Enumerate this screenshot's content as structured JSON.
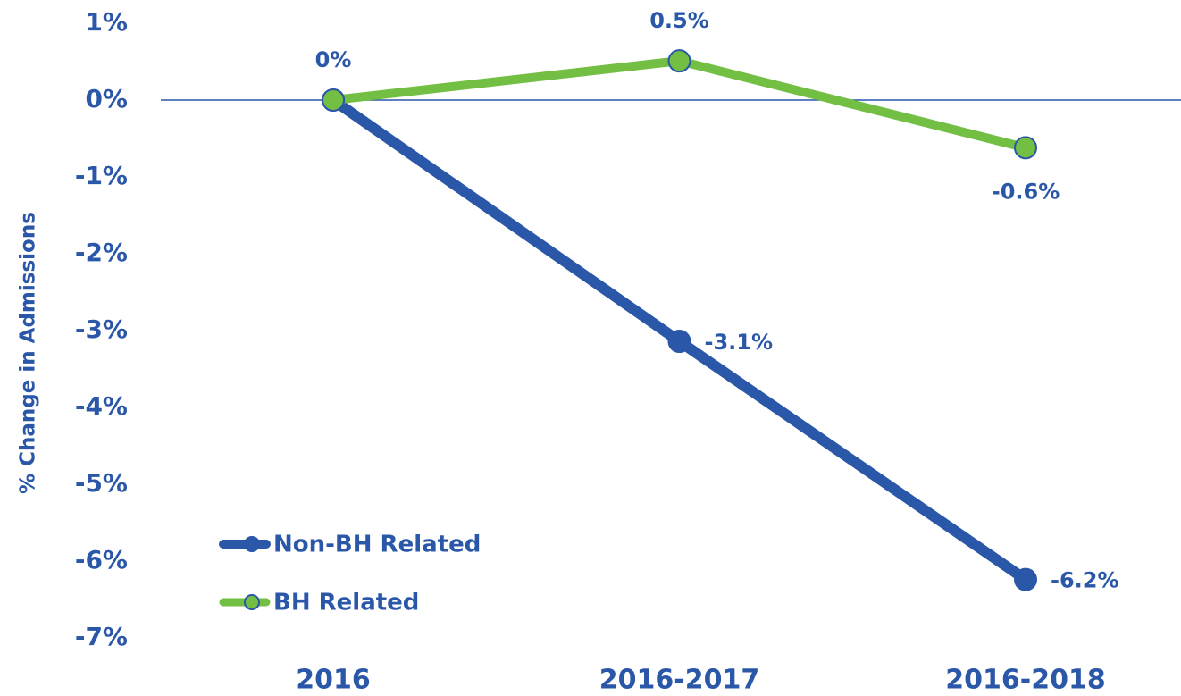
{
  "chart_data": {
    "type": "line",
    "y_label": "% Change in Admissions",
    "categories": [
      "2016",
      "2016-2017",
      "2016-2018"
    ],
    "series": [
      {
        "name": "Non-BH Related",
        "color": "#2a57a8",
        "values": [
          0,
          -3.14,
          -6.24
        ],
        "value_labels": [
          null,
          "-3.1%",
          "-6.2%"
        ]
      },
      {
        "name": "BH Related",
        "color": "#72bf44",
        "values": [
          0,
          0.51,
          -0.62
        ],
        "value_labels": [
          "0%",
          "0.5%",
          "-0.6%"
        ]
      }
    ],
    "ylim": [
      -7,
      1
    ],
    "yticks": [
      {
        "value": 1,
        "label": "1%"
      },
      {
        "value": 0,
        "label": "0%"
      },
      {
        "value": -1,
        "label": "-1%"
      },
      {
        "value": -2,
        "label": "-2%"
      },
      {
        "value": -3,
        "label": "-3%"
      },
      {
        "value": -4,
        "label": "-4%"
      },
      {
        "value": -5,
        "label": "-5%"
      },
      {
        "value": -6,
        "label": "-6%"
      },
      {
        "value": -7,
        "label": "-7%"
      }
    ],
    "legend": "lower left"
  }
}
